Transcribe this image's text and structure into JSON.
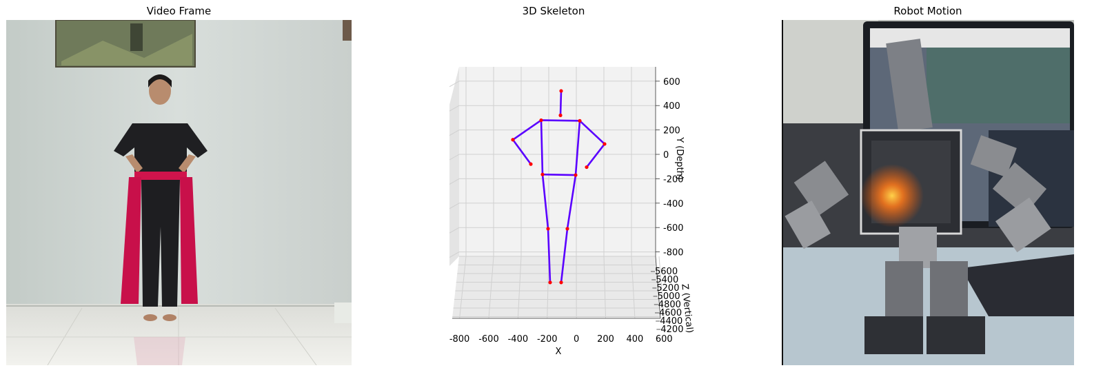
{
  "panels": {
    "video": {
      "title": "Video Frame"
    },
    "skeleton": {
      "title": "3D Skeleton"
    },
    "robot": {
      "title": "Robot Motion"
    }
  },
  "chart_data": {
    "type": "scatter",
    "title": "3D Skeleton",
    "xlabel": "X",
    "ylabel": "Y (Depth)",
    "zlabel": "Z (Vertical)",
    "xlim": [
      -900,
      600
    ],
    "x_ticks": [
      "-800",
      "-600",
      "-400",
      "-200",
      "0",
      "200",
      "400",
      "600"
    ],
    "y_ticks": [
      "600",
      "400",
      "200",
      "0",
      "-200",
      "-400",
      "-600",
      "-800"
    ],
    "z_ticks": [
      "5600",
      "5400",
      "5200",
      "5000",
      "4800",
      "4600",
      "4400",
      "4200"
    ],
    "grid": true,
    "joint_color": "#ff0000",
    "bone_color": "#5a00ff",
    "joints": [
      {
        "name": "head",
        "x": -110,
        "y": 520
      },
      {
        "name": "neck",
        "x": -115,
        "y": 320
      },
      {
        "name": "right_shoulder",
        "x": -255,
        "y": 280
      },
      {
        "name": "left_shoulder",
        "x": 25,
        "y": 275
      },
      {
        "name": "right_elbow",
        "x": -460,
        "y": 120
      },
      {
        "name": "left_elbow",
        "x": 205,
        "y": 85
      },
      {
        "name": "right_wrist",
        "x": -330,
        "y": -80
      },
      {
        "name": "left_wrist",
        "x": 75,
        "y": -105
      },
      {
        "name": "right_hip",
        "x": -245,
        "y": -165
      },
      {
        "name": "left_hip",
        "x": -5,
        "y": -170
      },
      {
        "name": "right_knee",
        "x": -205,
        "y": -610
      },
      {
        "name": "left_knee",
        "x": -65,
        "y": -610
      },
      {
        "name": "right_ankle",
        "x": -190,
        "y": -1050
      },
      {
        "name": "left_ankle",
        "x": -110,
        "y": -1050
      }
    ],
    "bones": [
      [
        "head",
        "neck"
      ],
      [
        "right_shoulder",
        "left_shoulder"
      ],
      [
        "right_shoulder",
        "right_elbow"
      ],
      [
        "right_elbow",
        "right_wrist"
      ],
      [
        "left_shoulder",
        "left_elbow"
      ],
      [
        "left_elbow",
        "left_wrist"
      ],
      [
        "right_shoulder",
        "right_hip"
      ],
      [
        "left_shoulder",
        "left_hip"
      ],
      [
        "right_hip",
        "left_hip"
      ],
      [
        "right_hip",
        "right_knee"
      ],
      [
        "right_knee",
        "right_ankle"
      ],
      [
        "left_hip",
        "left_knee"
      ],
      [
        "left_knee",
        "left_ankle"
      ]
    ]
  },
  "colors": {
    "wall": "#cfd6d2",
    "floor": "#e6e7e2",
    "shirt": "#1f1f22",
    "sash": "#d0144c",
    "robot_metal": "#8a8c90",
    "screen": "#2b3340"
  },
  "icons": [
    "painting",
    "person",
    "robot",
    "laptop"
  ]
}
